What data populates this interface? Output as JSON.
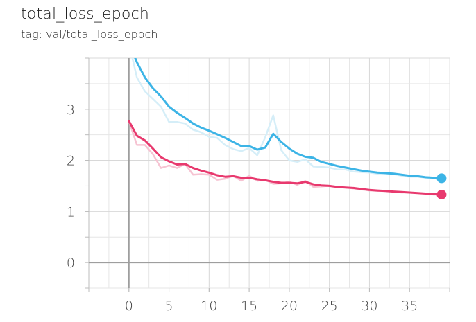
{
  "title": "total_loss_epoch",
  "tag": "tag: val/total_loss_epoch",
  "chart_data": {
    "type": "line",
    "xlim": [
      -5,
      40
    ],
    "ylim": [
      -0.5,
      4.0
    ],
    "x_ticks": [
      0,
      5,
      10,
      15,
      20,
      25,
      30,
      35
    ],
    "y_ticks": [
      0,
      1,
      2,
      3
    ],
    "grid": true,
    "series": [
      {
        "color": "#3CB4E6",
        "raw_color": "#D5EEF8",
        "x": [
          0,
          1,
          2,
          3,
          4,
          5,
          6,
          7,
          8,
          9,
          10,
          11,
          12,
          13,
          14,
          15,
          16,
          17,
          18,
          19,
          20,
          21,
          22,
          23,
          24,
          25,
          26,
          27,
          28,
          29,
          30,
          31,
          32,
          33,
          34,
          35,
          36,
          37,
          38,
          39
        ],
        "smoothed": [
          4.3,
          3.92,
          3.62,
          3.41,
          3.25,
          3.05,
          2.93,
          2.83,
          2.72,
          2.64,
          2.58,
          2.51,
          2.44,
          2.36,
          2.28,
          2.28,
          2.21,
          2.25,
          2.52,
          2.36,
          2.23,
          2.13,
          2.07,
          2.05,
          1.97,
          1.93,
          1.89,
          1.86,
          1.83,
          1.8,
          1.78,
          1.76,
          1.75,
          1.74,
          1.72,
          1.7,
          1.69,
          1.67,
          1.66,
          1.65
        ],
        "raw": [
          4.3,
          3.62,
          3.35,
          3.2,
          3.05,
          2.75,
          2.75,
          2.72,
          2.6,
          2.55,
          2.46,
          2.44,
          2.3,
          2.22,
          2.18,
          2.24,
          2.1,
          2.45,
          2.88,
          2.2,
          2.0,
          1.97,
          2.02,
          1.88,
          1.87,
          1.86,
          1.82,
          1.82,
          1.78,
          1.77,
          1.76,
          1.74,
          1.75,
          1.73,
          1.7,
          1.68,
          1.68,
          1.66,
          1.65,
          1.64
        ]
      },
      {
        "color": "#E8396E",
        "raw_color": "#F6C3D2",
        "x": [
          0,
          1,
          2,
          3,
          4,
          5,
          6,
          7,
          8,
          9,
          10,
          11,
          12,
          13,
          14,
          15,
          16,
          17,
          18,
          19,
          20,
          21,
          22,
          23,
          24,
          25,
          26,
          27,
          28,
          29,
          30,
          31,
          32,
          33,
          34,
          35,
          36,
          37,
          38,
          39
        ],
        "smoothed": [
          2.77,
          2.48,
          2.39,
          2.23,
          2.06,
          1.98,
          1.92,
          1.93,
          1.85,
          1.8,
          1.76,
          1.71,
          1.68,
          1.69,
          1.66,
          1.66,
          1.63,
          1.61,
          1.58,
          1.56,
          1.56,
          1.55,
          1.58,
          1.53,
          1.51,
          1.5,
          1.48,
          1.47,
          1.46,
          1.44,
          1.42,
          1.41,
          1.4,
          1.39,
          1.38,
          1.37,
          1.36,
          1.35,
          1.34,
          1.33
        ],
        "raw": [
          2.77,
          2.3,
          2.3,
          2.12,
          1.85,
          1.9,
          1.85,
          1.93,
          1.72,
          1.73,
          1.72,
          1.62,
          1.64,
          1.7,
          1.6,
          1.7,
          1.6,
          1.62,
          1.54,
          1.55,
          1.58,
          1.52,
          1.6,
          1.48,
          1.49,
          1.5,
          1.47,
          1.47,
          1.45,
          1.43,
          1.41,
          1.4,
          1.4,
          1.39,
          1.37,
          1.37,
          1.36,
          1.35,
          1.33,
          1.33
        ]
      }
    ]
  }
}
